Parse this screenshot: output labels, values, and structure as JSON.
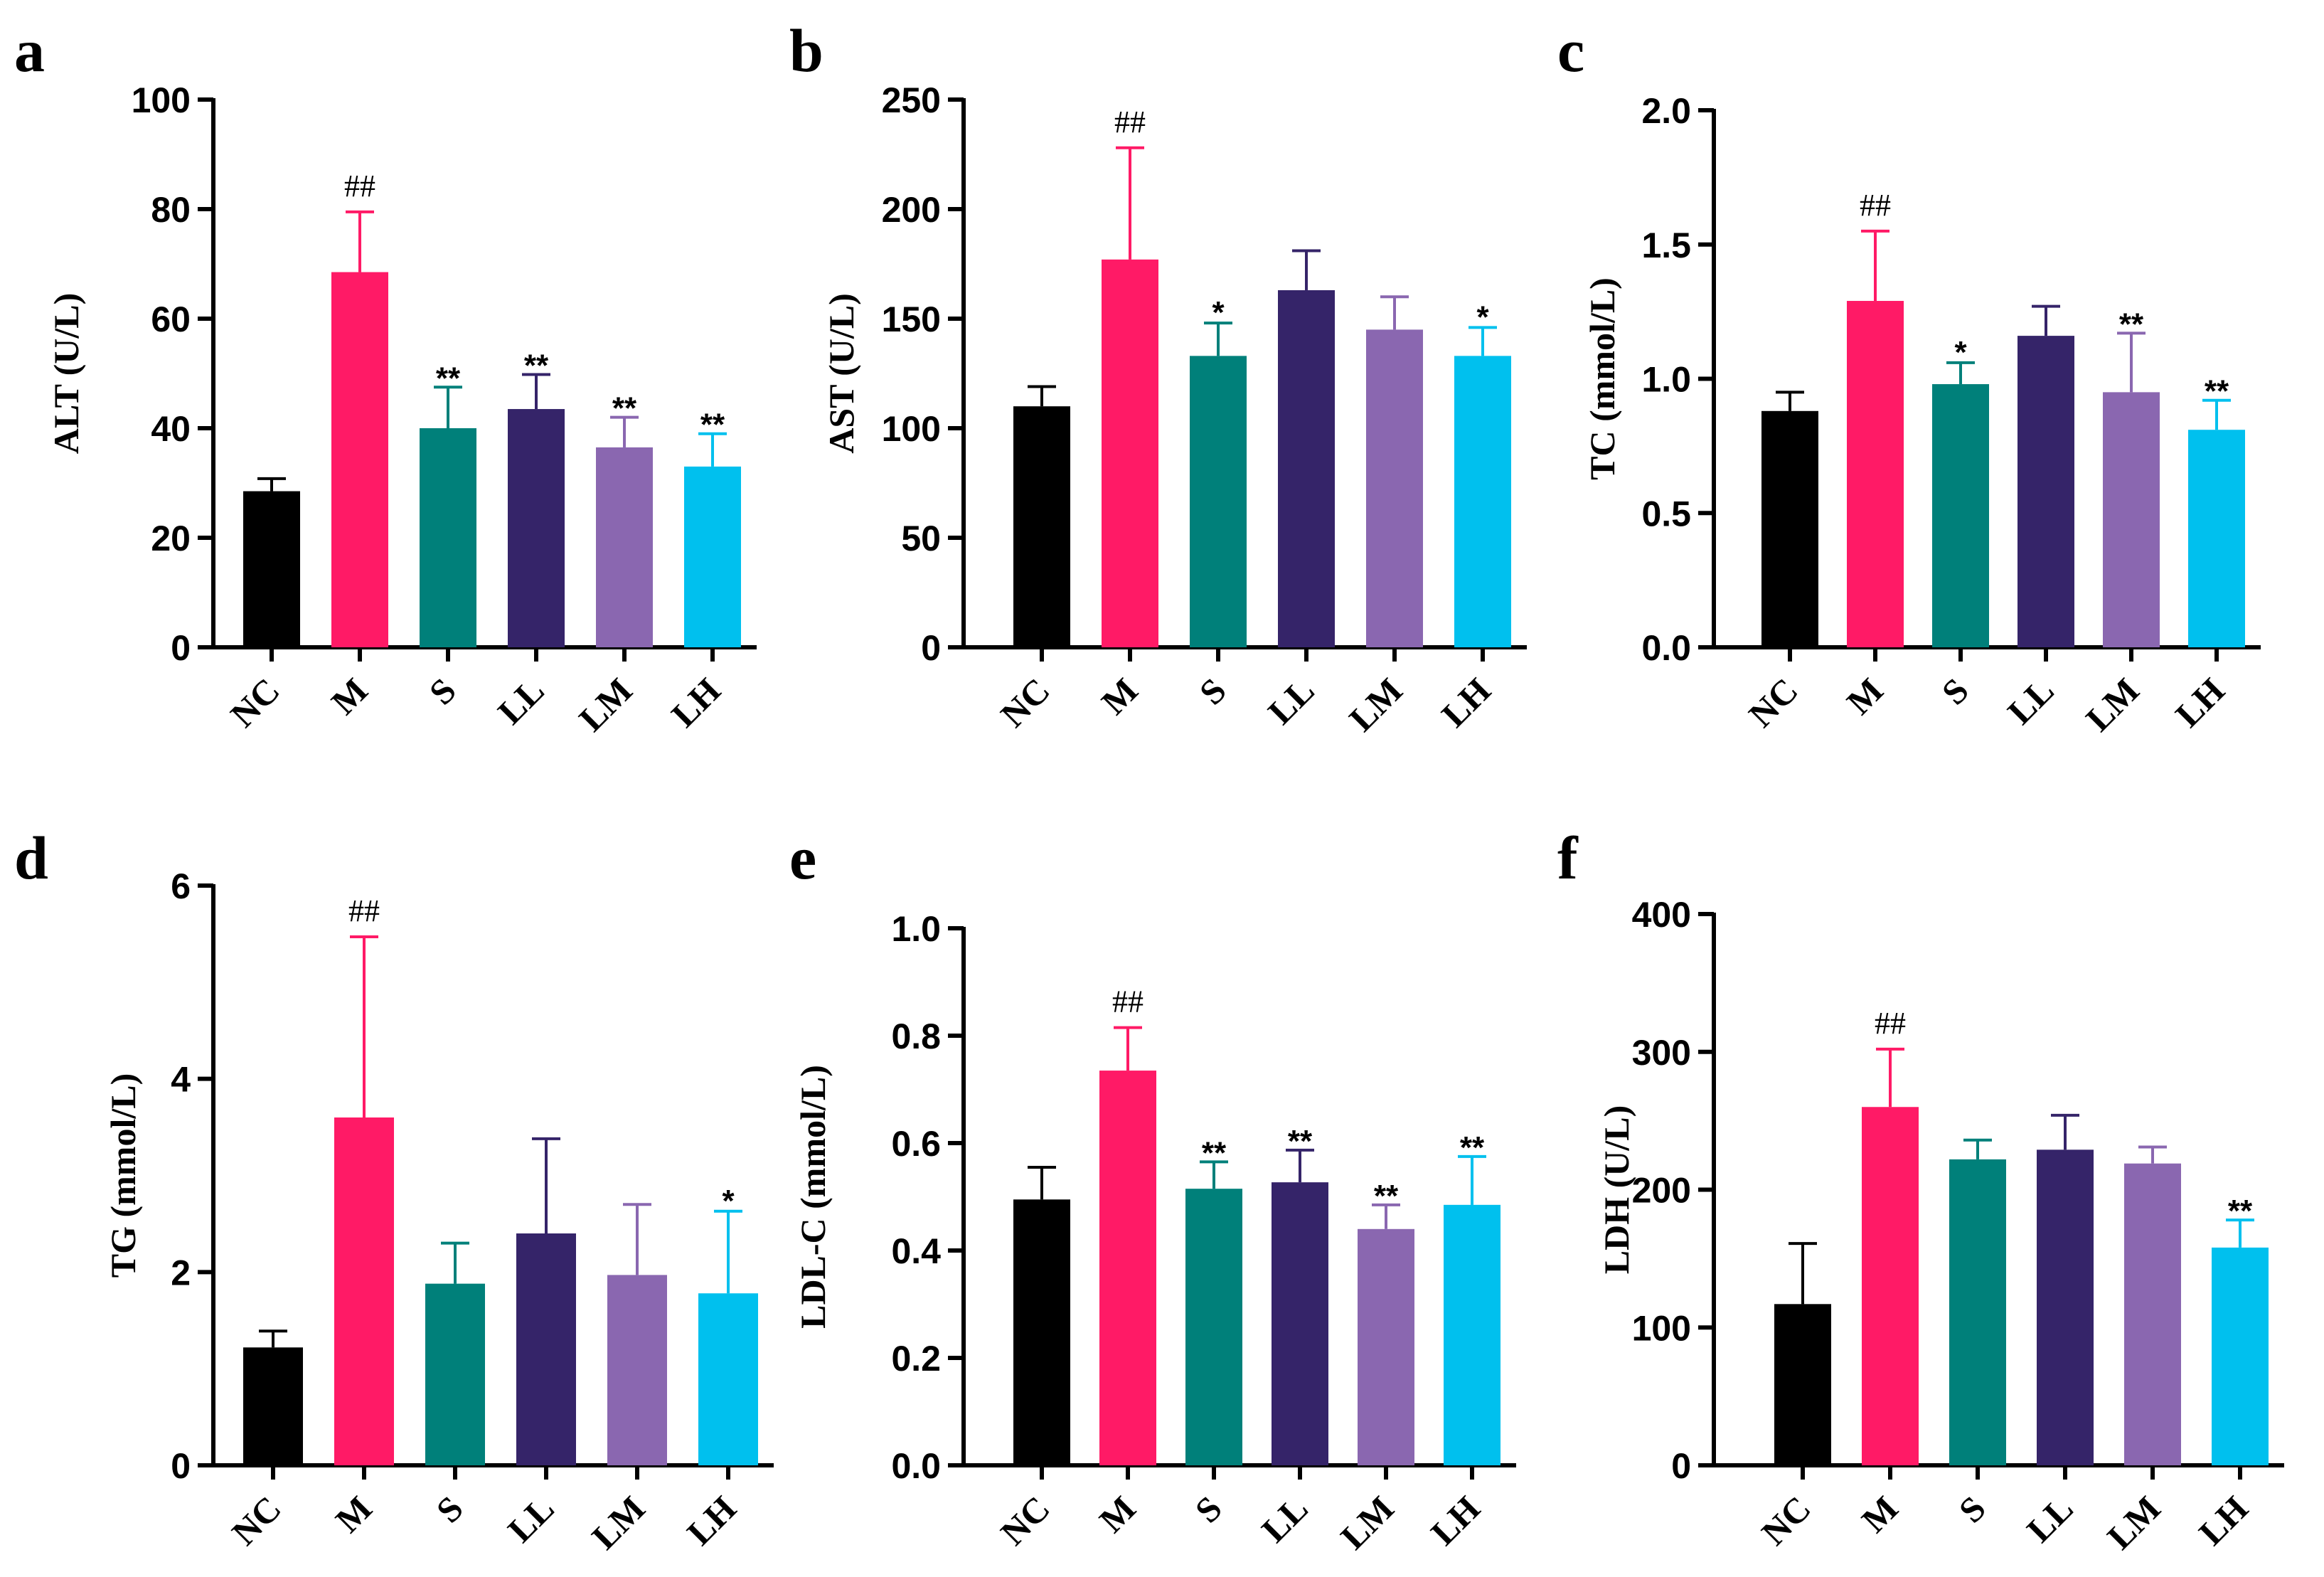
{
  "categories": [
    "NC",
    "M",
    "S",
    "LL",
    "LM",
    "LH"
  ],
  "colors": [
    "#000000",
    "#ff1a66",
    "#00807a",
    "#352469",
    "#8a67b0",
    "#00c0ee"
  ],
  "chart_data": [
    {
      "type": "bar",
      "panel": "a",
      "ylabel": "ALT (U/L)",
      "ylim": [
        0,
        100
      ],
      "ticks": [
        0,
        20,
        40,
        60,
        80,
        100
      ],
      "categories": [
        "NC",
        "M",
        "S",
        "LL",
        "LM",
        "LH"
      ],
      "values": [
        28.5,
        68.5,
        40,
        43.5,
        36.5,
        33
      ],
      "errors": [
        2.3,
        11,
        7.5,
        6.3,
        5.5,
        6
      ],
      "significance": [
        "",
        "##",
        "**",
        "**",
        "**",
        "**"
      ]
    },
    {
      "type": "bar",
      "panel": "b",
      "ylabel": "AST (U/L)",
      "ylim": [
        0,
        250
      ],
      "ticks": [
        0,
        50,
        100,
        150,
        200,
        250
      ],
      "categories": [
        "NC",
        "M",
        "S",
        "LL",
        "LM",
        "LH"
      ],
      "values": [
        110,
        177,
        133,
        163,
        145,
        133
      ],
      "errors": [
        9,
        51,
        15,
        18,
        15,
        13
      ],
      "significance": [
        "",
        "##",
        "*",
        "",
        "",
        "*"
      ]
    },
    {
      "type": "bar",
      "panel": "c",
      "ylabel": "TC (mmol/L)",
      "ylim": [
        0,
        2.0
      ],
      "ticks": [
        "0.0",
        "0.5",
        "1.0",
        "1.5",
        "2.0"
      ],
      "categories": [
        "NC",
        "M",
        "S",
        "LL",
        "LM",
        "LH"
      ],
      "values": [
        0.88,
        1.29,
        0.98,
        1.16,
        0.95,
        0.81
      ],
      "errors": [
        0.07,
        0.26,
        0.08,
        0.11,
        0.22,
        0.11
      ],
      "significance": [
        "",
        "##",
        "*",
        "",
        "**",
        "**"
      ]
    },
    {
      "type": "bar",
      "panel": "d",
      "ylabel": "TG (mmol/L)",
      "ylim": [
        0,
        6
      ],
      "ticks": [
        0,
        2,
        4,
        6
      ],
      "categories": [
        "NC",
        "M",
        "S",
        "LL",
        "LM",
        "LH"
      ],
      "values": [
        1.22,
        3.6,
        1.88,
        2.4,
        1.97,
        1.78
      ],
      "errors": [
        0.17,
        1.87,
        0.42,
        0.98,
        0.73,
        0.85
      ],
      "significance": [
        "",
        "##",
        "",
        "",
        "",
        "*"
      ]
    },
    {
      "type": "bar",
      "panel": "e",
      "ylabel": "LDL-C (mmol/L)",
      "ylim": [
        0,
        1.0
      ],
      "ticks": [
        "0.0",
        "0.2",
        "0.4",
        "0.6",
        "0.8",
        "1.0"
      ],
      "categories": [
        "NC",
        "M",
        "S",
        "LL",
        "LM",
        "LH"
      ],
      "values": [
        0.495,
        0.735,
        0.515,
        0.527,
        0.44,
        0.485
      ],
      "errors": [
        0.06,
        0.08,
        0.05,
        0.06,
        0.045,
        0.09
      ],
      "significance": [
        "",
        "##",
        "**",
        "**",
        "**",
        "**"
      ]
    },
    {
      "type": "bar",
      "panel": "f",
      "ylabel": "LDH (U/L)",
      "ylim": [
        0,
        400
      ],
      "ticks": [
        0,
        100,
        200,
        300,
        400
      ],
      "categories": [
        "NC",
        "M",
        "S",
        "LL",
        "LM",
        "LH"
      ],
      "values": [
        117,
        260,
        222,
        229,
        219,
        158
      ],
      "errors": [
        44,
        42,
        14,
        25,
        12,
        20
      ],
      "significance": [
        "",
        "##",
        "",
        "",
        "",
        "**"
      ]
    }
  ]
}
